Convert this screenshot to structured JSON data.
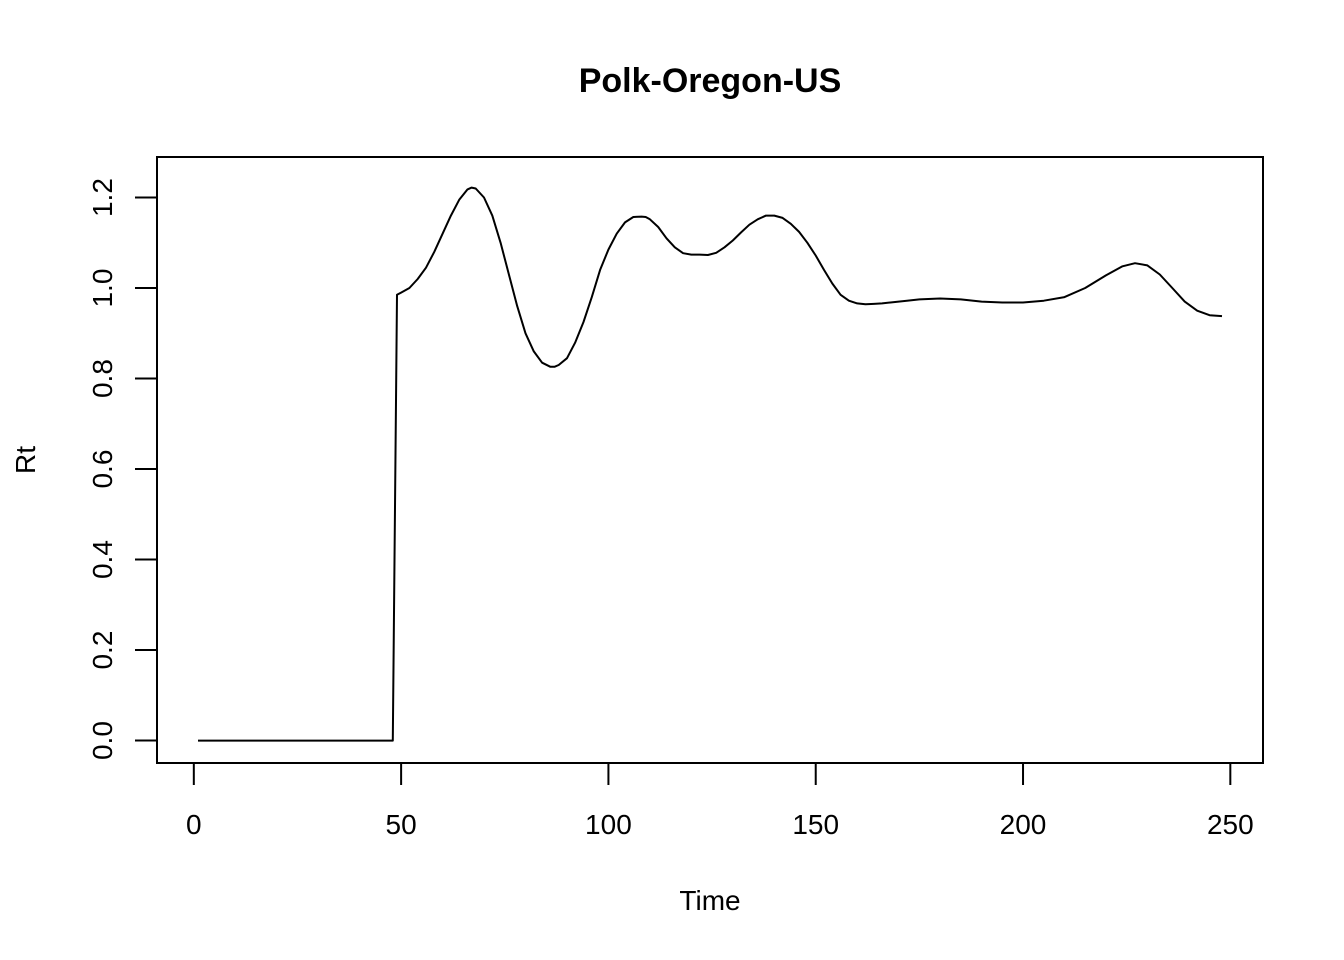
{
  "chart_data": {
    "type": "line",
    "title": "Polk-Oregon-US",
    "xlabel": "Time",
    "ylabel": "Rt",
    "xlim": [
      1,
      248
    ],
    "ylim": [
      0,
      1.24
    ],
    "x_ticks": [
      0,
      50,
      100,
      150,
      200,
      250
    ],
    "x_tick_labels": [
      "0",
      "50",
      "100",
      "150",
      "200",
      "250"
    ],
    "y_ticks": [
      0,
      0.2,
      0.4,
      0.6,
      0.8,
      1.0,
      1.2
    ],
    "y_tick_labels": [
      "0.0",
      "0.2",
      "0.4",
      "0.6",
      "0.8",
      "1.0",
      "1.2"
    ],
    "grid": false,
    "series": [
      {
        "color": "#000000",
        "x": [
          1,
          10,
          20,
          30,
          40,
          48,
          49,
          50,
          52,
          54,
          56,
          58,
          60,
          62,
          64,
          66,
          67,
          68,
          70,
          72,
          74,
          76,
          78,
          80,
          82,
          84,
          86,
          87,
          88,
          90,
          92,
          94,
          96,
          98,
          100,
          102,
          104,
          106,
          108,
          109,
          110,
          112,
          114,
          116,
          118,
          120,
          122,
          124,
          126,
          128,
          130,
          132,
          134,
          136,
          138,
          140,
          142,
          144,
          146,
          148,
          150,
          152,
          154,
          156,
          158,
          160,
          162,
          164,
          166,
          168,
          170,
          172,
          175,
          180,
          185,
          190,
          195,
          200,
          205,
          210,
          215,
          220,
          224,
          227,
          230,
          233,
          236,
          239,
          242,
          245,
          248
        ],
        "y": [
          0,
          0,
          0,
          0,
          0,
          0,
          0.985,
          0.99,
          1.0,
          1.02,
          1.045,
          1.08,
          1.12,
          1.16,
          1.195,
          1.218,
          1.222,
          1.22,
          1.2,
          1.16,
          1.1,
          1.03,
          0.96,
          0.9,
          0.86,
          0.835,
          0.826,
          0.826,
          0.83,
          0.845,
          0.88,
          0.925,
          0.98,
          1.04,
          1.085,
          1.12,
          1.145,
          1.157,
          1.158,
          1.157,
          1.152,
          1.135,
          1.11,
          1.09,
          1.077,
          1.074,
          1.074,
          1.073,
          1.078,
          1.09,
          1.105,
          1.123,
          1.14,
          1.152,
          1.16,
          1.16,
          1.155,
          1.142,
          1.124,
          1.1,
          1.072,
          1.04,
          1.01,
          0.985,
          0.972,
          0.966,
          0.964,
          0.965,
          0.966,
          0.968,
          0.97,
          0.972,
          0.975,
          0.977,
          0.975,
          0.97,
          0.968,
          0.968,
          0.972,
          0.98,
          1.0,
          1.028,
          1.048,
          1.055,
          1.05,
          1.03,
          1.0,
          0.97,
          0.95,
          0.94,
          0.938
        ]
      }
    ]
  }
}
